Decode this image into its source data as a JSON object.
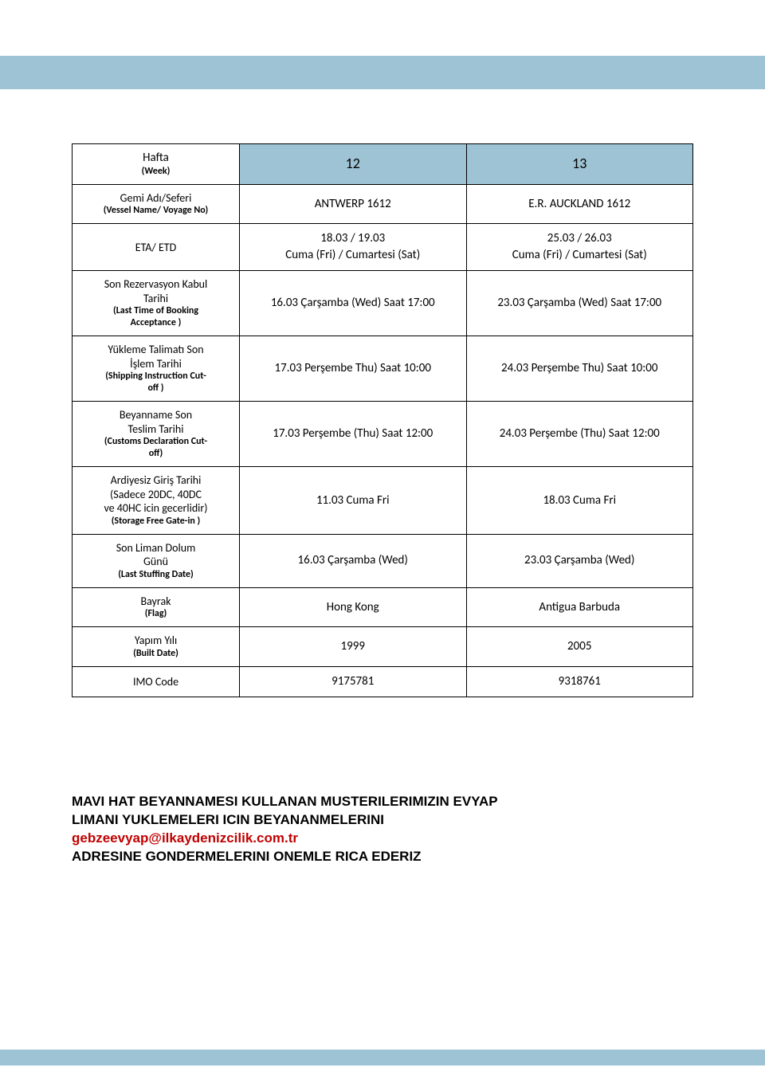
{
  "colors": {
    "band_bg": "#9dc3d4",
    "border": "#000000",
    "page_bg": "#ffffff",
    "email_color": "#c00000"
  },
  "typography": {
    "body_font": "Calibri, Arial, sans-serif",
    "notice_font": "Verdana, Arial, sans-serif",
    "cell_fontsize_pt": 11,
    "header_num_fontsize_pt": 14,
    "notice_fontsize_pt": 13
  },
  "table": {
    "rows": [
      {
        "label_main": "Hafta",
        "label_sub": "(Week)",
        "col1": "12",
        "col2": "13"
      },
      {
        "label_main": "Gemi Adı/Seferi",
        "label_sub": "(Vessel Name/ Voyage No)",
        "col1": "ANTWERP  1612",
        "col2": "E.R. AUCKLAND   1612"
      },
      {
        "label_main": "ETA/ ETD",
        "label_sub": "",
        "col1": "18.03 / 19.03\nCuma (Fri) / Cumartesi (Sat)",
        "col2": "25.03 / 26.03\nCuma (Fri) / Cumartesi (Sat)"
      },
      {
        "label_main": "Son Rezervasyon Kabul\nTarihi",
        "label_sub": "(Last Time of Booking\nAcceptance )",
        "col1": "16.03 Çarşamba (Wed) Saat 17:00",
        "col2": "23.03 Çarşamba (Wed) Saat 17:00"
      },
      {
        "label_main": "Yükleme Talimatı Son\nİşlem Tarihi",
        "label_sub": "(Shipping Instruction Cut-\noff )",
        "col1": "17.03 Perşembe Thu) Saat 10:00",
        "col2": "24.03 Perşembe Thu) Saat 10:00"
      },
      {
        "label_main": "Beyanname Son\nTeslim Tarihi",
        "label_sub": "(Customs Declaration Cut-\noff)",
        "col1": "17.03 Perşembe (Thu) Saat 12:00",
        "col2": "24.03 Perşembe (Thu) Saat 12:00"
      },
      {
        "label_main": "Ardiyesiz Giriş Tarihi\n(Sadece 20DC, 40DC\nve 40HC icin gecerlidir)",
        "label_sub": "(Storage Free Gate-in )",
        "col1": "11.03  Cuma Fri",
        "col2": "18.03  Cuma Fri"
      },
      {
        "label_main": "Son Liman Dolum\nGünü",
        "label_sub": "(Last Stuffing Date)",
        "col1": "16.03  Çarşamba (Wed)",
        "col2": "23.03  Çarşamba (Wed)"
      },
      {
        "label_main": "Bayrak",
        "label_sub": "(Flag)",
        "col1": "Hong Kong",
        "col2": "Antigua Barbuda"
      },
      {
        "label_main": "Yapım Yılı",
        "label_sub": "(Built Date)",
        "col1": "1999",
        "col2": "2005"
      },
      {
        "label_main": "IMO Code",
        "label_sub": "",
        "col1": "9175781",
        "col2": "9318761"
      }
    ]
  },
  "notice": {
    "line1": "MAVI HAT BEYANNAMESI KULLANAN MUSTERILERIMIZIN EVYAP",
    "line2": "LIMANI YUKLEMELERI ICIN BEYANANMELERINI",
    "email": "gebzeevyap@ilkaydenizcilik.com.tr",
    "line3": "ADRESINE GONDERMELERINI ONEMLE RICA EDERIZ"
  }
}
